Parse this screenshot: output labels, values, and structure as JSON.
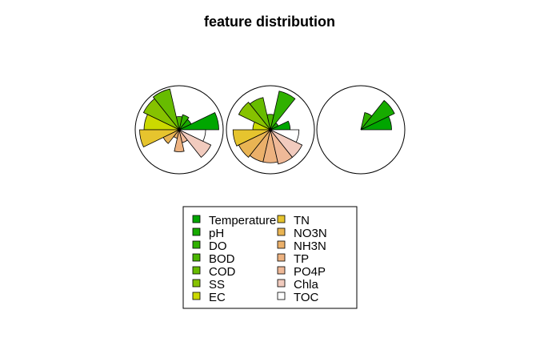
{
  "chart_data": {
    "type": "star",
    "title": "feature distribution",
    "features": [
      {
        "name": "Temperature",
        "color": "#00A600"
      },
      {
        "name": "pH",
        "color": "#17AB00"
      },
      {
        "name": "DO",
        "color": "#30B100"
      },
      {
        "name": "BOD",
        "color": "#4AB600"
      },
      {
        "name": "COD",
        "color": "#67BC00"
      },
      {
        "name": "SS",
        "color": "#86C200"
      },
      {
        "name": "EC",
        "color": "#CBD900"
      },
      {
        "name": "TN",
        "color": "#E6C42E"
      },
      {
        "name": "NO3N",
        "color": "#E9B453"
      },
      {
        "name": "NH3N",
        "color": "#EBB06A"
      },
      {
        "name": "TP",
        "color": "#EDB280"
      },
      {
        "name": "PO4P",
        "color": "#EFB998"
      },
      {
        "name": "Chla",
        "color": "#F1CBBE"
      },
      {
        "name": "TOC",
        "color": "#FFFFFF"
      }
    ],
    "stars": [
      {
        "values": [
          0.9,
          0.3,
          0.35,
          0.3,
          0.95,
          0.9,
          0.8,
          0.9,
          0.4,
          0.2,
          0.5,
          0.3,
          0.8,
          0.6
        ]
      },
      {
        "values": [
          0.45,
          0.2,
          0.9,
          0.35,
          0.75,
          0.8,
          0.4,
          0.85,
          0.8,
          0.75,
          0.75,
          0.8,
          0.8,
          0.65
        ]
      },
      {
        "values": [
          0.7,
          0.85,
          0.4,
          0.0,
          0.0,
          0.0,
          0.0,
          0.0,
          0.0,
          0.0,
          0.0,
          0.0,
          0.0,
          0.0
        ]
      }
    ],
    "legend_position": "bottom"
  }
}
